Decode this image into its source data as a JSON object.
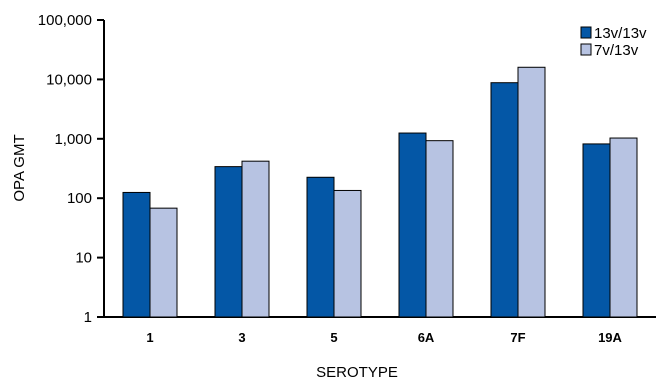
{
  "chart_data": {
    "type": "bar",
    "title": "",
    "xlabel": "SEROTYPE",
    "ylabel": "OPA GMT",
    "yscale": "log",
    "ylim": [
      1,
      100000
    ],
    "yticks": [
      1,
      10,
      100,
      1000,
      10000,
      100000
    ],
    "ytick_labels": [
      "1",
      "10",
      "100",
      "1,000",
      "10,000",
      "100,000"
    ],
    "categories": [
      "1",
      "3",
      "5",
      "6A",
      "7F",
      "19A"
    ],
    "series": [
      {
        "name": "13v/13v",
        "color": "#0457a6",
        "values": [
          125,
          340,
          225,
          1250,
          8800,
          820
        ]
      },
      {
        "name": "7v/13v",
        "color": "#b7c3e2",
        "values": [
          68,
          420,
          135,
          930,
          16000,
          1030
        ]
      }
    ],
    "legend_position": "top-right",
    "grid": false
  }
}
